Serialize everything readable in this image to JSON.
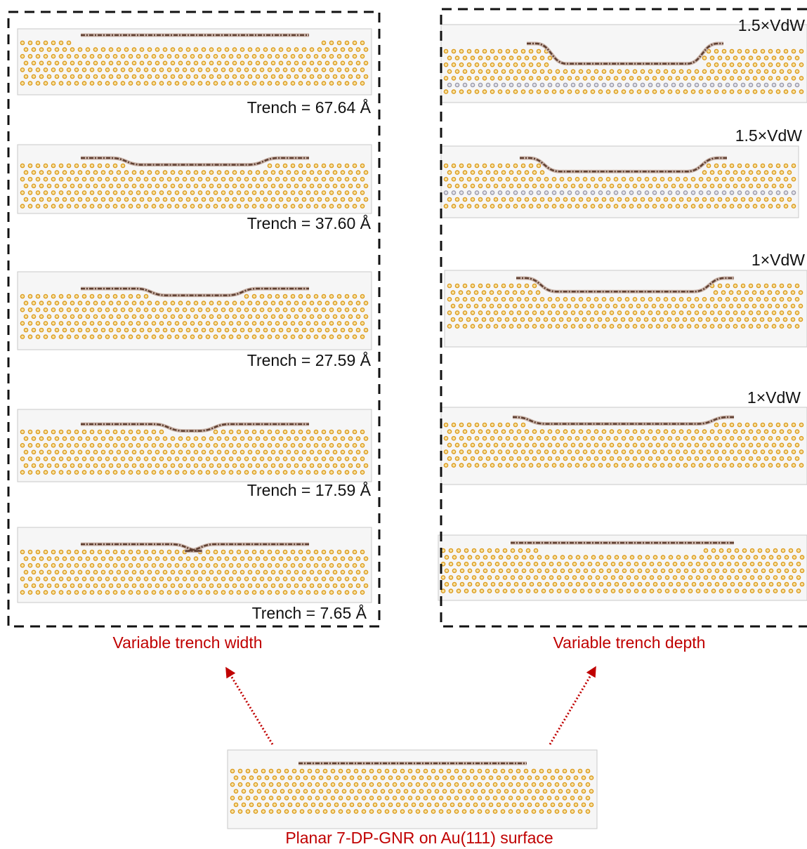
{
  "left_panel": {
    "caption": "Variable trench width",
    "items": [
      {
        "label": "Trench = 67.64 Å"
      },
      {
        "label": "Trench = 37.60 Å"
      },
      {
        "label": "Trench = 27.59 Å"
      },
      {
        "label": "Trench = 17.59 Å"
      },
      {
        "label": "Trench = 7.65 Å"
      }
    ]
  },
  "right_panel": {
    "caption": "Variable trench depth",
    "items": [
      {
        "label": "1.5×VdW"
      },
      {
        "label": "1.5×VdW"
      },
      {
        "label": "1×VdW"
      },
      {
        "label": "1×VdW"
      }
    ]
  },
  "bottom": {
    "caption": "Planar 7-DP-GNR on Au(111) surface"
  }
}
